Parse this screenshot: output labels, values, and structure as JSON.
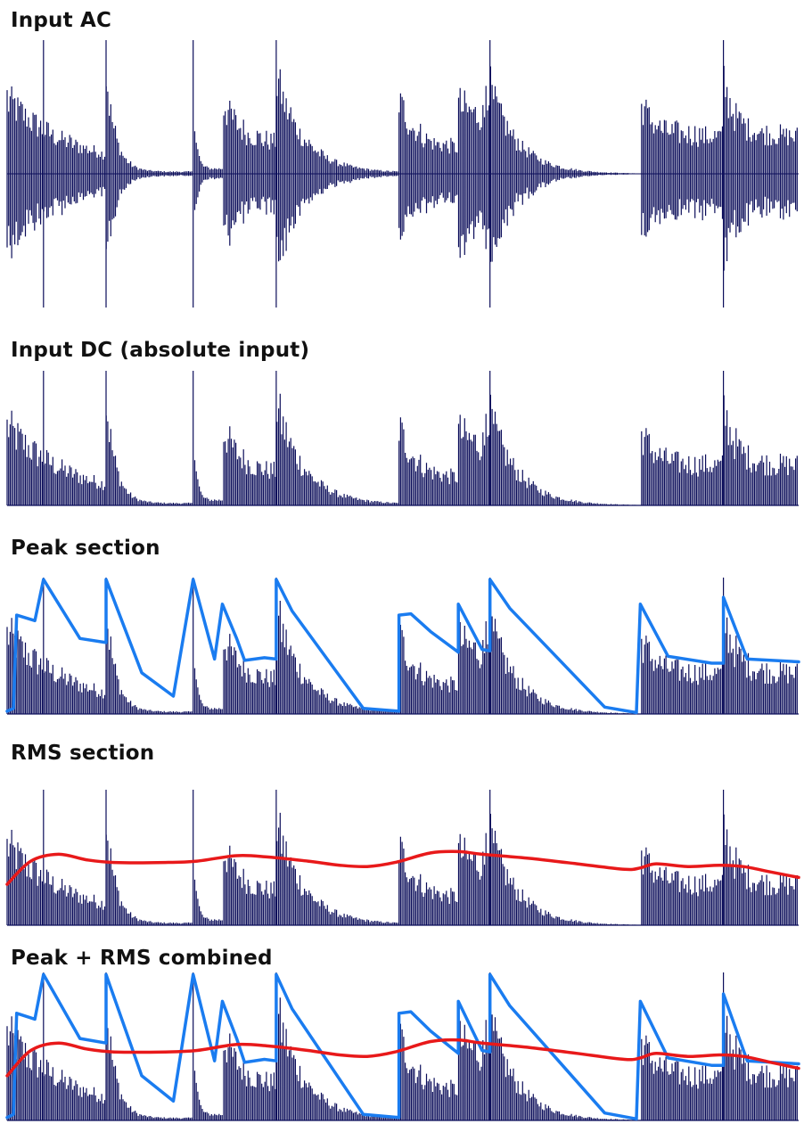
{
  "panels": [
    {
      "id": "ac",
      "title": "Input AC",
      "mode": "ac",
      "overlays": []
    },
    {
      "id": "dc",
      "title": "Input DC (absolute input)",
      "mode": "dc",
      "overlays": []
    },
    {
      "id": "peak",
      "title": "Peak section",
      "mode": "dc",
      "overlays": [
        "peak"
      ]
    },
    {
      "id": "rms",
      "title": "RMS section",
      "mode": "dc",
      "overlays": [
        "rms"
      ]
    },
    {
      "id": "combined",
      "title": "Peak + RMS combined",
      "mode": "dc",
      "overlays": [
        "peak",
        "rms"
      ]
    }
  ],
  "colors": {
    "waveform": "#0b0d5a",
    "peak": "#1a7cf0",
    "rms": "#e8191a",
    "title": "#111111"
  },
  "signal": {
    "x_range": [
      0,
      1
    ],
    "amplitude_range": [
      -1,
      1
    ],
    "segments": [
      {
        "start": 0.0,
        "end": 0.125,
        "peak": 0.75,
        "decay": 1.6,
        "floor": 0.06
      },
      {
        "start": 0.125,
        "end": 0.235,
        "peak": 1.0,
        "decay": 9.0,
        "floor": 0.02
      },
      {
        "start": 0.235,
        "end": 0.272,
        "peak": 1.0,
        "decay": 10.0,
        "floor": 0.05
      },
      {
        "start": 0.272,
        "end": 0.34,
        "peak": 0.74,
        "decay": 3.0,
        "floor": 0.3
      },
      {
        "start": 0.34,
        "end": 0.495,
        "peak": 0.96,
        "decay": 4.5,
        "floor": 0.01
      },
      {
        "start": 0.495,
        "end": 0.57,
        "peak": 0.75,
        "decay": 3.5,
        "floor": 0.25
      },
      {
        "start": 0.57,
        "end": 0.605,
        "peak": 0.71,
        "decay": 2.0,
        "floor": 0.55
      },
      {
        "start": 0.605,
        "end": 0.8,
        "peak": 0.97,
        "decay": 5.5,
        "floor": 0.0
      },
      {
        "start": 0.8,
        "end": 0.905,
        "peak": 0.72,
        "decay": 6.0,
        "floor": 0.38
      },
      {
        "start": 0.905,
        "end": 1.0,
        "peak": 0.93,
        "decay": 6.0,
        "floor": 0.38
      }
    ],
    "spikes": [
      0.046,
      0.125,
      0.235,
      0.34,
      0.61,
      0.905
    ]
  },
  "peak_envelope": {
    "points": [
      [
        0.0,
        0.02
      ],
      [
        0.008,
        0.04
      ],
      [
        0.012,
        0.72
      ],
      [
        0.035,
        0.68
      ],
      [
        0.046,
        0.98
      ],
      [
        0.092,
        0.55
      ],
      [
        0.125,
        0.52
      ],
      [
        0.125,
        0.98
      ],
      [
        0.17,
        0.3
      ],
      [
        0.21,
        0.13
      ],
      [
        0.235,
        0.98
      ],
      [
        0.262,
        0.4
      ],
      [
        0.272,
        0.8
      ],
      [
        0.29,
        0.55
      ],
      [
        0.3,
        0.39
      ],
      [
        0.325,
        0.41
      ],
      [
        0.34,
        0.4
      ],
      [
        0.34,
        0.98
      ],
      [
        0.36,
        0.75
      ],
      [
        0.45,
        0.04
      ],
      [
        0.495,
        0.02
      ],
      [
        0.495,
        0.72
      ],
      [
        0.51,
        0.73
      ],
      [
        0.535,
        0.6
      ],
      [
        0.57,
        0.45
      ],
      [
        0.57,
        0.8
      ],
      [
        0.6,
        0.47
      ],
      [
        0.61,
        0.46
      ],
      [
        0.61,
        0.98
      ],
      [
        0.635,
        0.77
      ],
      [
        0.755,
        0.05
      ],
      [
        0.795,
        0.01
      ],
      [
        0.8,
        0.8
      ],
      [
        0.835,
        0.42
      ],
      [
        0.89,
        0.37
      ],
      [
        0.905,
        0.37
      ],
      [
        0.905,
        0.85
      ],
      [
        0.935,
        0.4
      ],
      [
        1.0,
        0.38
      ]
    ]
  },
  "rms_envelope": {
    "points": [
      [
        0.0,
        0.3
      ],
      [
        0.03,
        0.47
      ],
      [
        0.065,
        0.52
      ],
      [
        0.1,
        0.48
      ],
      [
        0.135,
        0.46
      ],
      [
        0.2,
        0.46
      ],
      [
        0.24,
        0.47
      ],
      [
        0.29,
        0.51
      ],
      [
        0.33,
        0.5
      ],
      [
        0.38,
        0.47
      ],
      [
        0.42,
        0.44
      ],
      [
        0.455,
        0.43
      ],
      [
        0.49,
        0.46
      ],
      [
        0.535,
        0.53
      ],
      [
        0.57,
        0.54
      ],
      [
        0.6,
        0.52
      ],
      [
        0.66,
        0.49
      ],
      [
        0.72,
        0.45
      ],
      [
        0.78,
        0.41
      ],
      [
        0.8,
        0.42
      ],
      [
        0.82,
        0.45
      ],
      [
        0.86,
        0.43
      ],
      [
        0.9,
        0.44
      ],
      [
        0.93,
        0.43
      ],
      [
        0.965,
        0.39
      ],
      [
        1.0,
        0.35
      ]
    ]
  }
}
